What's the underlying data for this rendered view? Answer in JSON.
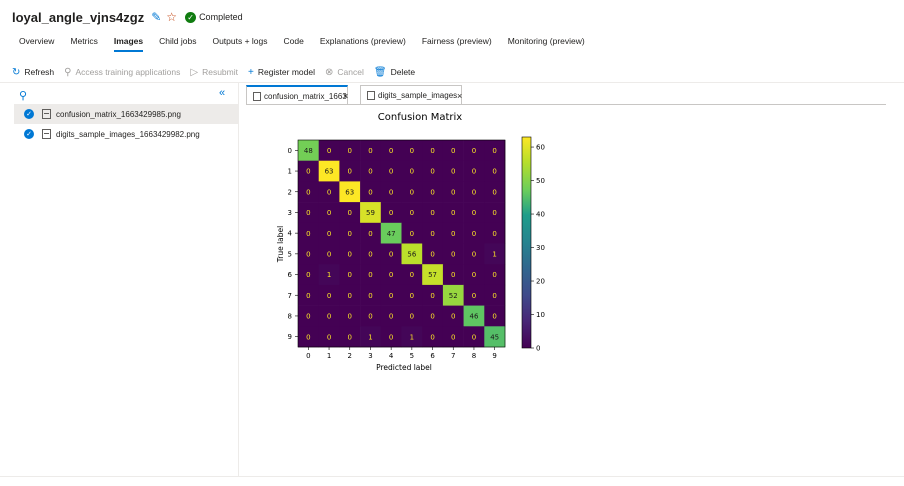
{
  "header": {
    "run_name": "loyal_angle_vjns4zgz",
    "status": "Completed",
    "icons": [
      "edit-icon",
      "star-icon",
      "check-circle-icon"
    ]
  },
  "tabs": [
    {
      "label": "Overview"
    },
    {
      "label": "Metrics"
    },
    {
      "label": "Images",
      "active": true
    },
    {
      "label": "Child jobs"
    },
    {
      "label": "Outputs + logs"
    },
    {
      "label": "Code"
    },
    {
      "label": "Explanations (preview)"
    },
    {
      "label": "Fairness (preview)"
    },
    {
      "label": "Monitoring (preview)"
    }
  ],
  "toolbar": {
    "refresh": "Refresh",
    "access_training": "Access training applications",
    "resubmit": "Resubmit",
    "register_model": "Register model",
    "cancel": "Cancel",
    "delete": "Delete"
  },
  "files": [
    {
      "name": "confusion_matrix_1663429985.png",
      "selected": true
    },
    {
      "name": "digits_sample_images_1663429982.png",
      "selected": false
    }
  ],
  "doc_tabs": [
    {
      "label": "confusion_matrix_1663",
      "active": true
    },
    {
      "label": "digits_sample_images",
      "active": false
    }
  ],
  "colors": {
    "accent": "#0078d4",
    "status_green": "#107c10"
  },
  "chart_data": {
    "type": "heatmap",
    "title": "Confusion Matrix",
    "xlabel": "Predicted label",
    "ylabel": "True label",
    "x_labels": [
      "0",
      "1",
      "2",
      "3",
      "4",
      "5",
      "6",
      "7",
      "8",
      "9"
    ],
    "y_labels": [
      "0",
      "1",
      "2",
      "3",
      "4",
      "5",
      "6",
      "7",
      "8",
      "9"
    ],
    "matrix": [
      [
        48,
        0,
        0,
        0,
        0,
        0,
        0,
        0,
        0,
        0
      ],
      [
        0,
        63,
        0,
        0,
        0,
        0,
        0,
        0,
        0,
        0
      ],
      [
        0,
        0,
        63,
        0,
        0,
        0,
        0,
        0,
        0,
        0
      ],
      [
        0,
        0,
        0,
        59,
        0,
        0,
        0,
        0,
        0,
        0
      ],
      [
        0,
        0,
        0,
        0,
        47,
        0,
        0,
        0,
        0,
        0
      ],
      [
        0,
        0,
        0,
        0,
        0,
        56,
        0,
        0,
        0,
        1
      ],
      [
        0,
        1,
        0,
        0,
        0,
        0,
        57,
        0,
        0,
        0
      ],
      [
        0,
        0,
        0,
        0,
        0,
        0,
        0,
        52,
        0,
        0
      ],
      [
        0,
        0,
        0,
        0,
        0,
        0,
        0,
        0,
        46,
        0
      ],
      [
        0,
        0,
        0,
        1,
        0,
        1,
        0,
        0,
        0,
        45
      ]
    ],
    "colorbar": {
      "ticks": [
        0,
        10,
        20,
        30,
        40,
        50,
        60
      ],
      "min": 0,
      "max": 63,
      "colormap": "viridis"
    }
  }
}
